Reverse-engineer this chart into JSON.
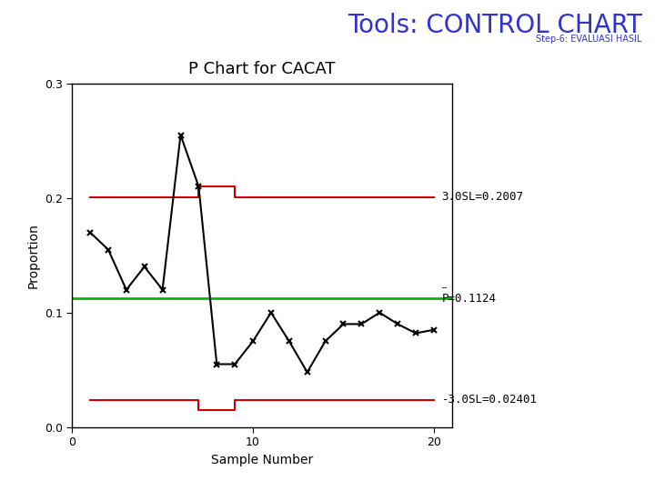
{
  "title": "P Chart for CACAT",
  "header_title": "Tools: CONTROL CHART",
  "header_subtitle": "Step-6: EVALUASI HASIL",
  "xlabel": "Sample Number",
  "ylabel": "Proportion",
  "ylim": [
    0.0,
    0.3
  ],
  "xlim": [
    0,
    21
  ],
  "yticks": [
    0.0,
    0.1,
    0.2,
    0.3
  ],
  "xticks": [
    0,
    10,
    20
  ],
  "p_bar": 0.1124,
  "ucl_label": "3.0SL=0.2007",
  "lcl_label": "-3.0SL=0.02401",
  "data_x": [
    1,
    2,
    3,
    4,
    5,
    6,
    7,
    8,
    9,
    10,
    11,
    12,
    13,
    14,
    15,
    16,
    17,
    18,
    19,
    20
  ],
  "data_y": [
    0.17,
    0.155,
    0.12,
    0.14,
    0.12,
    0.255,
    0.21,
    0.055,
    0.055,
    0.075,
    0.1,
    0.075,
    0.048,
    0.075,
    0.09,
    0.09,
    0.1,
    0.09,
    0.082,
    0.085
  ],
  "ucl_x": [
    1,
    7,
    7,
    9,
    9,
    20
  ],
  "ucl_y": [
    0.2007,
    0.2007,
    0.21,
    0.21,
    0.2007,
    0.2007
  ],
  "lcl_x": [
    1,
    7,
    7,
    9,
    9,
    20
  ],
  "lcl_y": [
    0.024,
    0.024,
    0.015,
    0.015,
    0.024,
    0.024
  ],
  "ucl_color": "#cc0000",
  "lcl_color": "#cc0000",
  "center_color": "#00bb00",
  "data_color": "#000000",
  "bg_color": "#ffffff",
  "header_color": "#3333cc",
  "title_fontsize": 13,
  "header_fontsize": 20,
  "header_subtitle_fontsize": 7,
  "axis_label_fontsize": 10,
  "tick_fontsize": 9,
  "annotation_fontsize": 9
}
